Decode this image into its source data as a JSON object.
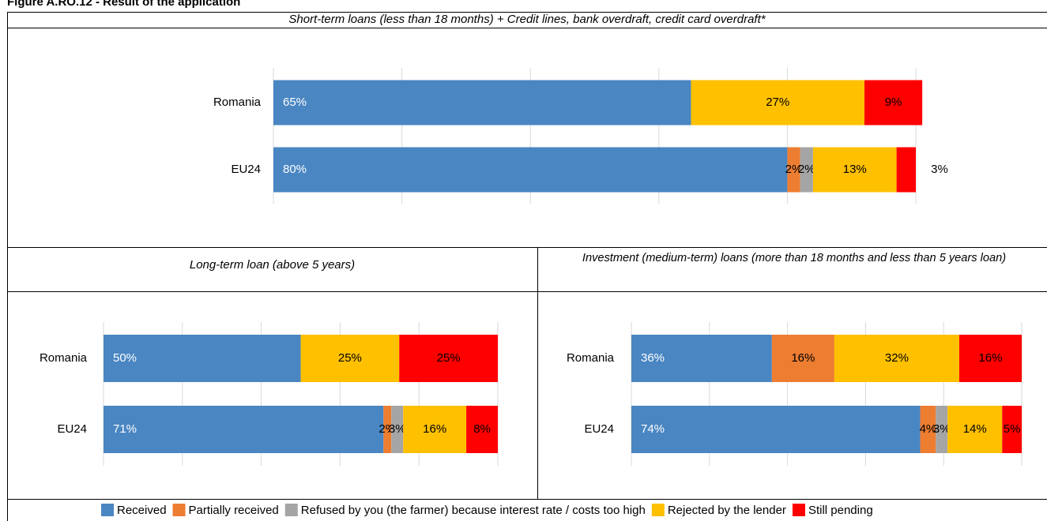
{
  "title": "Figure A.RO.12 - Result of the application",
  "chart_data": [
    {
      "type": "stacked_bar_horizontal",
      "title": "Short-term loans (less than 18 months) + Credit lines, bank overdraft, credit card overdraft*",
      "categories": [
        "Romania",
        "EU24"
      ],
      "xlim": [
        0,
        100
      ],
      "xticks": [
        0,
        20,
        40,
        60,
        80,
        100
      ],
      "grid": true,
      "series": [
        {
          "name": "Received",
          "color": "#4a86c2",
          "values": [
            65,
            80
          ]
        },
        {
          "name": "Partially received",
          "color": "#ed7d31",
          "values": [
            null,
            2
          ]
        },
        {
          "name": "Refused by you (the farmer) because interest rate / costs too high",
          "color": "#a5a5a5",
          "values": [
            null,
            2
          ]
        },
        {
          "name": "Rejected by the lender",
          "color": "#ffc000",
          "values": [
            27,
            13
          ]
        },
        {
          "name": "Still pending",
          "color": "#ff0000",
          "values": [
            9,
            3
          ]
        }
      ],
      "value_labels": [
        [
          "65%",
          null,
          null,
          "27%",
          "9%"
        ],
        [
          "80%",
          "2%",
          "2%",
          "13%",
          "3%"
        ]
      ]
    },
    {
      "type": "stacked_bar_horizontal",
      "title": "Long-term loan (above 5 years)",
      "categories": [
        "Romania",
        "EU24"
      ],
      "xlim": [
        0,
        100
      ],
      "xticks": [
        0,
        20,
        40,
        60,
        80,
        100
      ],
      "grid": true,
      "series": [
        {
          "values": [
            50,
            71
          ]
        },
        {
          "values": [
            null,
            2
          ]
        },
        {
          "values": [
            null,
            3
          ]
        },
        {
          "values": [
            25,
            16
          ]
        },
        {
          "values": [
            25,
            8
          ]
        }
      ],
      "value_labels": [
        [
          "50%",
          null,
          null,
          "25%",
          "25%"
        ],
        [
          "71%",
          "2%",
          "3%",
          "16%",
          "8%"
        ]
      ]
    },
    {
      "type": "stacked_bar_horizontal",
      "title": "Investment (medium-term) loans (more than 18 months and less than 5 years loan)",
      "categories": [
        "Romania",
        "EU24"
      ],
      "xlim": [
        0,
        100
      ],
      "xticks": [
        0,
        20,
        40,
        60,
        80,
        100
      ],
      "grid": true,
      "series": [
        {
          "values": [
            36,
            74
          ]
        },
        {
          "values": [
            16,
            4
          ]
        },
        {
          "values": [
            null,
            3
          ]
        },
        {
          "values": [
            32,
            14
          ]
        },
        {
          "values": [
            16,
            5
          ]
        }
      ],
      "value_labels": [
        [
          "36%",
          "16%",
          null,
          "32%",
          "16%"
        ],
        [
          "74%",
          "4%",
          "3%",
          "14%",
          "5%"
        ]
      ]
    }
  ]
}
